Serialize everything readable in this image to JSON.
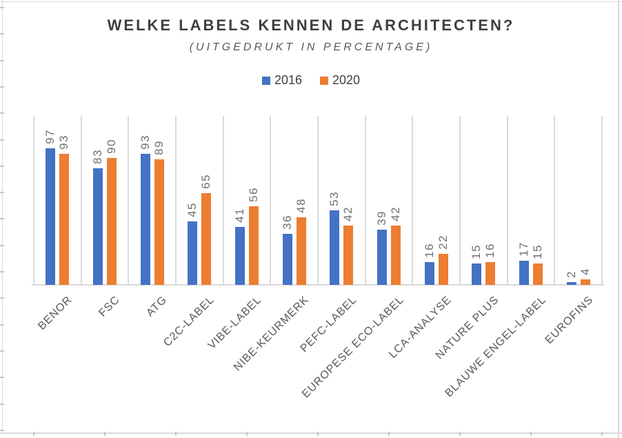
{
  "chart_data": {
    "type": "bar",
    "title": "WELKE LABELS KENNEN DE ARCHITECTEN?",
    "subtitle": "(UITGEDRUKT IN PERCENTAGE)",
    "xlabel": "",
    "ylabel": "",
    "ylim": [
      0,
      120
    ],
    "grid": "vertical category separators only, no horizontal gridlines, no y-axis ticks",
    "legend_position": "top-center",
    "value_labels": "rotated 90deg above each bar",
    "category_labels": "rotated 45deg below axis",
    "categories": [
      "BENOR",
      "FSC",
      "ATG",
      "C2C-LABEL",
      "VIBE-LABEL",
      "NIBE-KEURMERK",
      "PEFC-LABEL",
      "EUROPESE ECO-LABEL",
      "LCA-ANALYSE",
      "NATURE PLUS",
      "BLAUWE ENGEL-LABEL",
      "EUROFINS"
    ],
    "series": [
      {
        "name": "2016",
        "color": "#4472C4",
        "values": [
          97,
          83,
          93,
          45,
          41,
          36,
          53,
          39,
          16,
          15,
          17,
          2
        ]
      },
      {
        "name": "2020",
        "color": "#ED7D31",
        "values": [
          93,
          90,
          89,
          65,
          56,
          48,
          42,
          42,
          22,
          16,
          15,
          4
        ]
      }
    ]
  }
}
